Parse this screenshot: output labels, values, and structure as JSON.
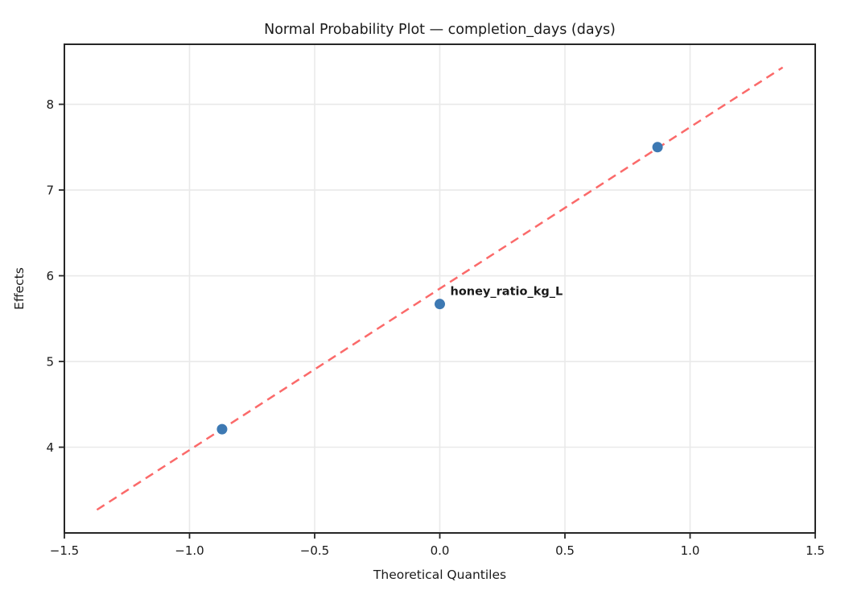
{
  "chart_data": {
    "type": "scatter",
    "title": "Normal Probability Plot — completion_days (days)",
    "xlabel": "Theoretical Quantiles",
    "ylabel": "Effects",
    "xlim": [
      -1.5,
      1.5
    ],
    "ylim": [
      3.0,
      8.7
    ],
    "grid": true,
    "legend_position": "none",
    "x_ticks": [
      {
        "value": -1.5,
        "label": "−1.5"
      },
      {
        "value": -1.0,
        "label": "−1.0"
      },
      {
        "value": -0.5,
        "label": "−0.5"
      },
      {
        "value": 0.0,
        "label": "0.0"
      },
      {
        "value": 0.5,
        "label": "0.5"
      },
      {
        "value": 1.0,
        "label": "1.0"
      },
      {
        "value": 1.5,
        "label": "1.5"
      }
    ],
    "y_ticks": [
      {
        "value": 4,
        "label": "4"
      },
      {
        "value": 5,
        "label": "5"
      },
      {
        "value": 6,
        "label": "6"
      },
      {
        "value": 7,
        "label": "7"
      },
      {
        "value": 8,
        "label": "8"
      }
    ],
    "points": [
      {
        "x": -0.87,
        "y": 4.21
      },
      {
        "x": 0.0,
        "y": 5.67
      },
      {
        "x": 0.87,
        "y": 7.5
      }
    ],
    "fit_line": {
      "x1": -1.37,
      "y1": 3.27,
      "x2": 1.37,
      "y2": 8.43,
      "style": "dashed"
    },
    "annotation": {
      "text": "honey_ratio_kg_L",
      "x": 0.0,
      "y": 5.67,
      "offset_x": 13,
      "offset_y": -11,
      "color": "#e60000"
    },
    "colors": {
      "marker": "#3d79b3",
      "line": "#fb6a6a",
      "grid": "#e9e9e9",
      "spine": "#262626",
      "text": "#1a1a1a"
    }
  }
}
